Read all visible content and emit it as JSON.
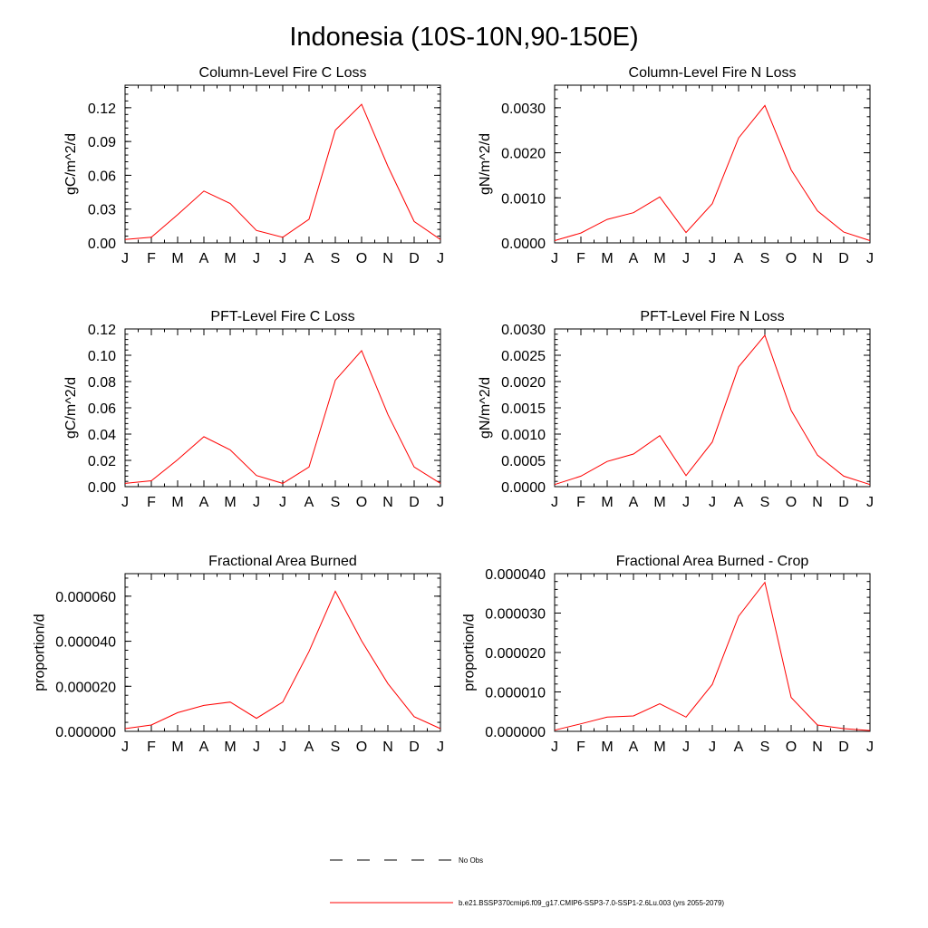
{
  "figure": {
    "title": "Indonesia (10S-10N,90-150E)",
    "colors": {
      "line": "#ff0000",
      "axis": "#000000",
      "obs": "#000000"
    }
  },
  "legend": {
    "obs_label": "No Obs",
    "model_label": "b.e21.BSSP370cmip6.f09_g17.CMIP6-SSP3-7.0-SSP1-2.6Lu.003 (yrs 2055-2079)"
  },
  "chart_data": [
    {
      "type": "line",
      "title": "Column-Level Fire C Loss",
      "ylabel": "gC/m^2/d",
      "categories": [
        "J",
        "F",
        "M",
        "A",
        "M",
        "J",
        "J",
        "A",
        "S",
        "O",
        "N",
        "D",
        "J"
      ],
      "ylim": [
        0,
        0.14
      ],
      "yticks": [
        0.0,
        0.03,
        0.06,
        0.09,
        0.12
      ],
      "ytick_labels": [
        "0.00",
        "0.03",
        "0.06",
        "0.09",
        "0.12"
      ],
      "series": [
        {
          "values": [
            0.003,
            0.005,
            0.025,
            0.046,
            0.035,
            0.011,
            0.005,
            0.021,
            0.1,
            0.123,
            0.068,
            0.019,
            0.003
          ]
        }
      ]
    },
    {
      "type": "line",
      "title": "Column-Level Fire N Loss",
      "ylabel": "gN/m^2/d",
      "categories": [
        "J",
        "F",
        "M",
        "A",
        "M",
        "J",
        "J",
        "A",
        "S",
        "O",
        "N",
        "D",
        "J"
      ],
      "ylim": [
        0,
        0.0035
      ],
      "yticks": [
        0.0,
        0.001,
        0.002,
        0.003
      ],
      "ytick_labels": [
        "0.0000",
        "0.0010",
        "0.0020",
        "0.0030"
      ],
      "series": [
        {
          "values": [
            5e-05,
            0.00022,
            0.00052,
            0.00067,
            0.00102,
            0.00023,
            0.00087,
            0.00233,
            0.00305,
            0.00162,
            0.00071,
            0.00024,
            5e-05
          ]
        }
      ]
    },
    {
      "type": "line",
      "title": "PFT-Level Fire C Loss",
      "ylabel": "gC/m^2/d",
      "categories": [
        "J",
        "F",
        "M",
        "A",
        "M",
        "J",
        "J",
        "A",
        "S",
        "O",
        "N",
        "D",
        "J"
      ],
      "ylim": [
        0,
        0.12
      ],
      "yticks": [
        0.0,
        0.02,
        0.04,
        0.06,
        0.08,
        0.1,
        0.12
      ],
      "ytick_labels": [
        "0.00",
        "0.02",
        "0.04",
        "0.06",
        "0.08",
        "0.10",
        "0.12"
      ],
      "series": [
        {
          "values": [
            0.0025,
            0.0045,
            0.0205,
            0.038,
            0.028,
            0.0085,
            0.0025,
            0.015,
            0.081,
            0.1035,
            0.055,
            0.015,
            0.0025
          ]
        }
      ]
    },
    {
      "type": "line",
      "title": "PFT-Level Fire N Loss",
      "ylabel": "gN/m^2/d",
      "categories": [
        "J",
        "F",
        "M",
        "A",
        "M",
        "J",
        "J",
        "A",
        "S",
        "O",
        "N",
        "D",
        "J"
      ],
      "ylim": [
        0,
        0.003
      ],
      "yticks": [
        0.0,
        0.0005,
        0.001,
        0.0015,
        0.002,
        0.0025,
        0.003
      ],
      "ytick_labels": [
        "0.0000",
        "0.0005",
        "0.0010",
        "0.0015",
        "0.0020",
        "0.0025",
        "0.0030"
      ],
      "series": [
        {
          "values": [
            4e-05,
            0.0002,
            0.00048,
            0.00062,
            0.00097,
            0.00021,
            0.00085,
            0.00228,
            0.00288,
            0.00145,
            0.0006,
            0.0002,
            4e-05
          ]
        }
      ]
    },
    {
      "type": "line",
      "title": "Fractional Area Burned",
      "ylabel": "proportion/d",
      "categories": [
        "J",
        "F",
        "M",
        "A",
        "M",
        "J",
        "J",
        "A",
        "S",
        "O",
        "N",
        "D",
        "J"
      ],
      "ylim": [
        0,
        7e-05
      ],
      "yticks": [
        0.0,
        2e-05,
        4e-05,
        6e-05
      ],
      "ytick_labels": [
        "0.000000",
        "0.000020",
        "0.000040",
        "0.000060"
      ],
      "series": [
        {
          "values": [
            1.2e-06,
            2.8e-06,
            8.3e-06,
            1.15e-05,
            1.3e-05,
            5.8e-06,
            1.3e-05,
            3.55e-05,
            6.22e-05,
            4.02e-05,
            2.12e-05,
            6.5e-06,
            1.2e-06
          ]
        }
      ]
    },
    {
      "type": "line",
      "title": "Fractional Area Burned - Crop",
      "ylabel": "proportion/d",
      "categories": [
        "J",
        "F",
        "M",
        "A",
        "M",
        "J",
        "J",
        "A",
        "S",
        "O",
        "N",
        "D",
        "J"
      ],
      "ylim": [
        0,
        4e-05
      ],
      "yticks": [
        0.0,
        1e-05,
        2e-05,
        3e-05,
        4e-05
      ],
      "ytick_labels": [
        "0.000000",
        "0.000010",
        "0.000020",
        "0.000030",
        "0.000040"
      ],
      "series": [
        {
          "values": [
            3e-07,
            1.9e-06,
            3.6e-06,
            3.9e-06,
            7e-06,
            3.6e-06,
            1.19e-05,
            2.92e-05,
            3.78e-05,
            8.6e-06,
            1.6e-06,
            7e-07,
            2e-07
          ]
        }
      ]
    }
  ]
}
